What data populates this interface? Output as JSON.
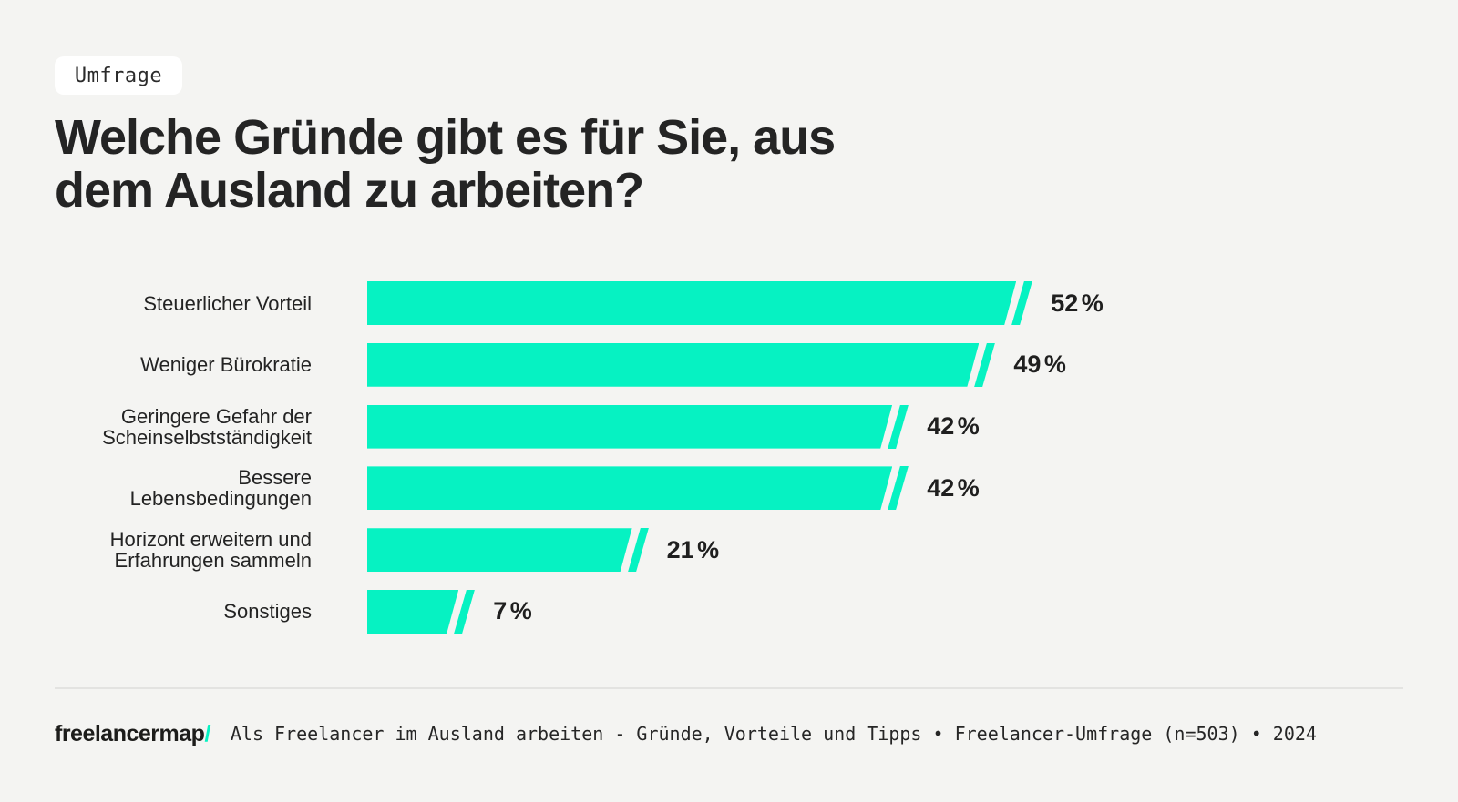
{
  "page": {
    "background_color": "#f4f4f2",
    "accent_color": "#06f2c2",
    "text_color": "#232323"
  },
  "badge": {
    "label": "Umfrage"
  },
  "title": {
    "text": "Welche Gründe gibt es für Sie, aus\ndem Ausland zu arbeiten?"
  },
  "chart_data": {
    "type": "bar",
    "orientation": "horizontal",
    "title": "Welche Gründe gibt es für Sie, aus dem Ausland zu arbeiten?",
    "unit": "%",
    "categories": [
      "Steuerlicher Vorteil",
      "Weniger Bürokratie",
      "Geringere Gefahr der\nScheinselbstständigkeit",
      "Bessere\nLebensbedingungen",
      "Horizont erweitern und\nErfahrungen sammeln",
      "Sonstiges"
    ],
    "values": [
      52,
      49,
      42,
      42,
      21,
      7
    ],
    "value_labels": [
      "52 %",
      "49 %",
      "42 %",
      "42 %",
      "21 %",
      "7 %"
    ],
    "bar_color": "#06f2c2",
    "xlim": [
      0,
      52
    ],
    "grid": false,
    "legend": false
  },
  "footer": {
    "logo_text": "freelancermap",
    "logo_slash": "/",
    "caption": "Als Freelancer im Ausland arbeiten - Gründe, Vorteile und Tipps • Freelancer-Umfrage (n=503) • 2024"
  }
}
